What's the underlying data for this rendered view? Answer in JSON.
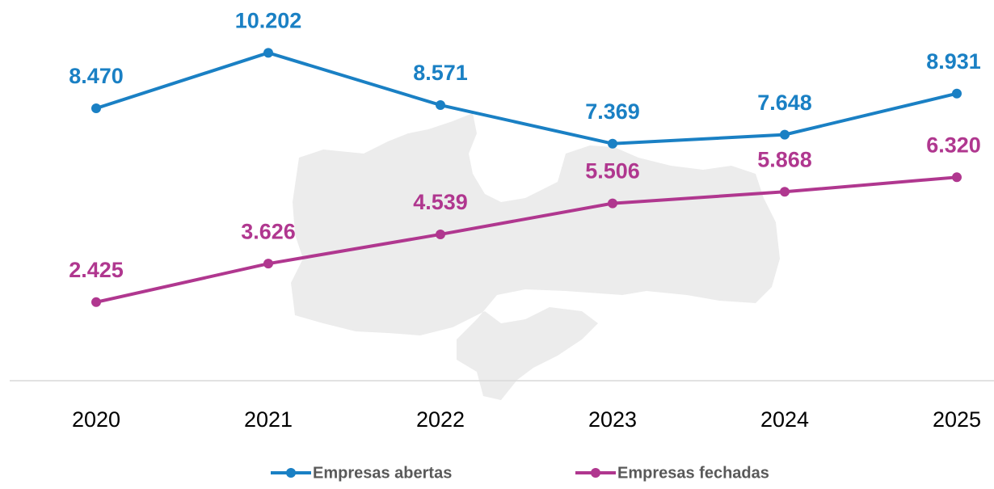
{
  "chart_data": {
    "type": "line",
    "categories": [
      "2020",
      "2021",
      "2022",
      "2023",
      "2024",
      "2025"
    ],
    "series": [
      {
        "name": "Empresas abertas",
        "color": "#1a80c4",
        "values": [
          8470,
          10202,
          8571,
          7369,
          7648,
          8931
        ],
        "value_labels": [
          "8.470",
          "10.202",
          "8.571",
          "7.369",
          "7.648",
          "8.931"
        ]
      },
      {
        "name": "Empresas fechadas",
        "color": "#b0378f",
        "values": [
          2425,
          3626,
          4539,
          5506,
          5868,
          6320
        ],
        "value_labels": [
          "2.425",
          "3.626",
          "4.539",
          "5.506",
          "5.868",
          "6.320"
        ]
      }
    ],
    "ylim": [
      0,
      12000
    ],
    "legend": "bottom"
  }
}
